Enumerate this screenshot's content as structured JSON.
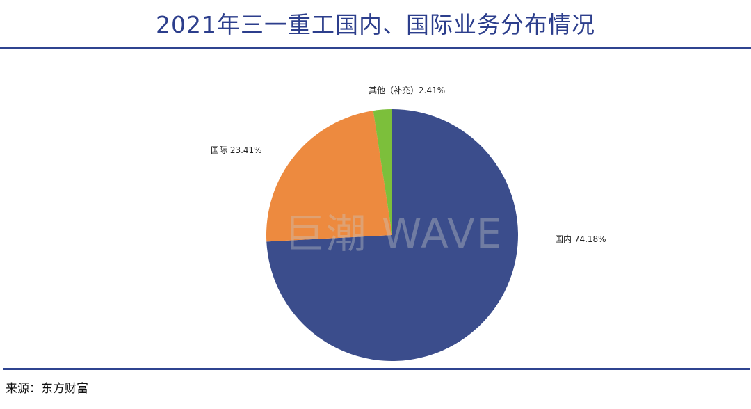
{
  "title": "2021年三一重工国内、国际业务分布情况",
  "source": "来源：东方财富",
  "watermark": "巨潮 WAVE",
  "chart_data": {
    "type": "pie",
    "title": "2021年三一重工国内、国际业务分布情况",
    "start_angle_deg": 0,
    "direction": "clockwise",
    "slices": [
      {
        "name": "国内",
        "value": 74.18,
        "label": "国内 74.18%",
        "color": "#3b4d8c"
      },
      {
        "name": "国际",
        "value": 23.41,
        "label": "国际 23.41%",
        "color": "#ed8a3f"
      },
      {
        "name": "其他（补充）",
        "value": 2.41,
        "label": "其他（补充）2.41%",
        "color": "#7cbf3b"
      }
    ]
  }
}
